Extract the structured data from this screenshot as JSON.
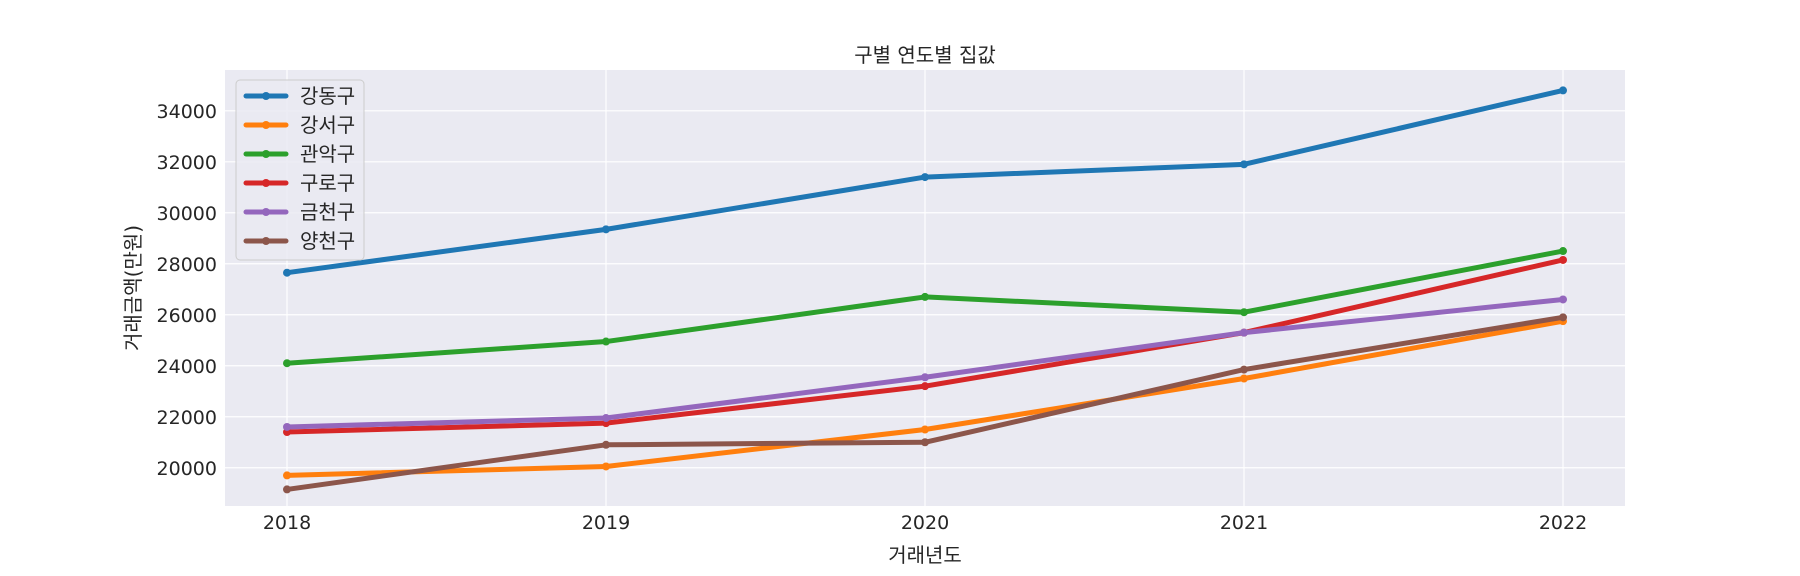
{
  "chart_data": {
    "type": "line",
    "title": "구별 연도별 집값",
    "xlabel": "거래년도",
    "ylabel": "거래금액(만원)",
    "categories": [
      "2018",
      "2019",
      "2020",
      "2021",
      "2022"
    ],
    "ylim": [
      18500,
      35600
    ],
    "yticks": [
      20000,
      22000,
      24000,
      26000,
      28000,
      30000,
      32000,
      34000
    ],
    "grid": true,
    "legend_position": "top-left",
    "series": [
      {
        "name": "강동구",
        "color": "#1f77b4",
        "values": [
          27650,
          29350,
          31400,
          31900,
          34800
        ]
      },
      {
        "name": "강서구",
        "color": "#ff7f0e",
        "values": [
          19700,
          20050,
          21500,
          23500,
          25750
        ]
      },
      {
        "name": "관악구",
        "color": "#2ca02c",
        "values": [
          24100,
          24950,
          26700,
          26100,
          28500
        ]
      },
      {
        "name": "구로구",
        "color": "#d62728",
        "values": [
          21400,
          21750,
          23200,
          25300,
          28150
        ]
      },
      {
        "name": "금천구",
        "color": "#9467bd",
        "values": [
          21600,
          21950,
          23550,
          25300,
          26600
        ]
      },
      {
        "name": "양천구",
        "color": "#8c564b",
        "values": [
          19150,
          20900,
          21000,
          23850,
          25900
        ]
      }
    ]
  }
}
